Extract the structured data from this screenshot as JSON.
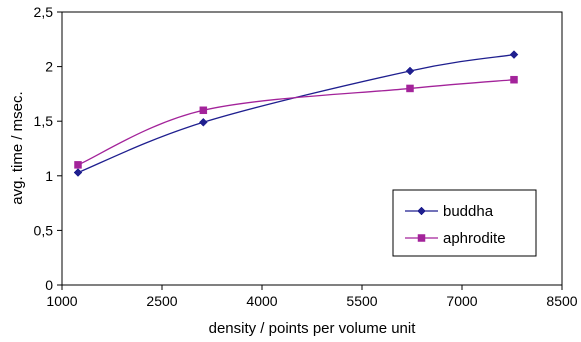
{
  "chart_data": {
    "type": "line",
    "xlabel": "density / points per volume unit",
    "ylabel": "avg. time / msec.",
    "xlim": [
      1000,
      8500
    ],
    "ylim": [
      0,
      2.5
    ],
    "x_ticks": [
      "1000",
      "2500",
      "4000",
      "5500",
      "7000",
      "8500"
    ],
    "y_ticks": [
      "0",
      "0,5",
      "1",
      "1,5",
      "2",
      "2,5"
    ],
    "legend_position": "bottom-right",
    "grid": false,
    "series": [
      {
        "name": "buddha",
        "color": "#1f1f8f",
        "marker": "diamond",
        "x": [
          1240,
          3120,
          6220,
          7780
        ],
        "y": [
          1.03,
          1.49,
          1.96,
          2.11
        ]
      },
      {
        "name": "aphrodite",
        "color": "#a3239a",
        "marker": "square",
        "x": [
          1240,
          3120,
          6220,
          7780
        ],
        "y": [
          1.1,
          1.6,
          1.8,
          1.88
        ]
      }
    ]
  }
}
